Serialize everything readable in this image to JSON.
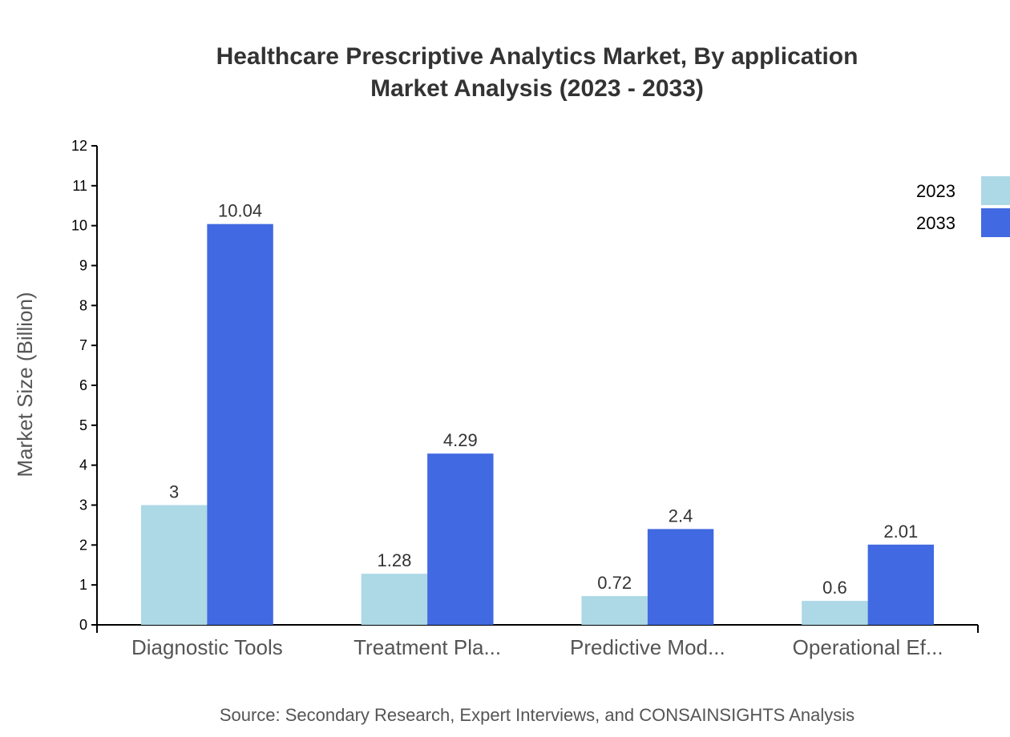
{
  "chart_data": {
    "type": "bar",
    "title": "Healthcare Prescriptive Analytics Market, By application",
    "subtitle": "Market Analysis (2023 - 2033)",
    "ylabel": "Market Size (Billion)",
    "xlabel": "",
    "ylim": [
      0,
      12
    ],
    "yticks": [
      0,
      1,
      2,
      3,
      4,
      5,
      6,
      7,
      8,
      9,
      10,
      11,
      12
    ],
    "categories": [
      "Diagnostic Tools",
      "Treatment Pla...",
      "Predictive Mod...",
      "Operational Ef..."
    ],
    "series": [
      {
        "name": "2023",
        "color": "#add8e6",
        "values": [
          3,
          1.28,
          0.72,
          0.6
        ]
      },
      {
        "name": "2033",
        "color": "#4169e1",
        "values": [
          10.04,
          4.29,
          2.4,
          2.01
        ]
      }
    ],
    "legend": "top-right",
    "grid": false,
    "source": "Source: Secondary Research, Expert Interviews, and CONSAINSIGHTS Analysis"
  }
}
